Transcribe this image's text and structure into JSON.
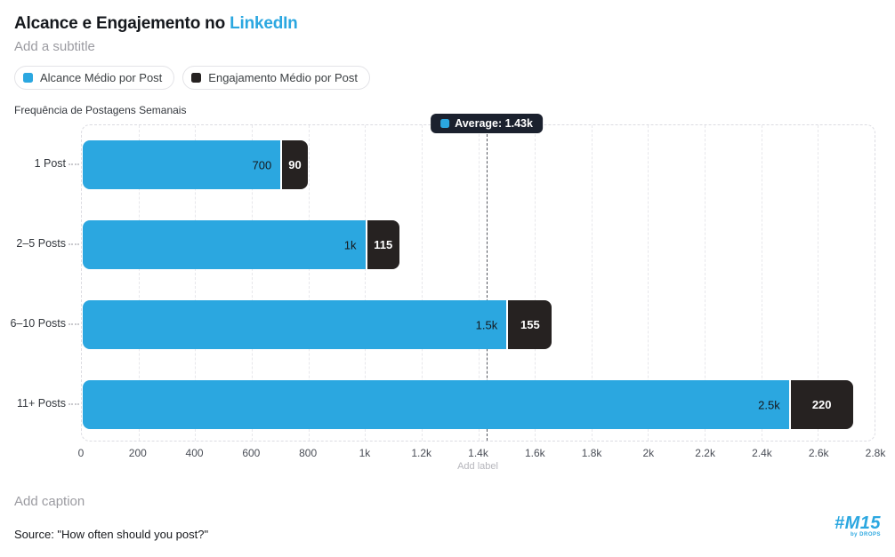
{
  "header": {
    "title_prefix": "Alcance e Engajemento no ",
    "title_highlight": "LinkedIn",
    "subtitle_placeholder": "Add a subtitle"
  },
  "legend": {
    "items": [
      {
        "label": "Alcance Médio por Post",
        "color": "#2BA7E0"
      },
      {
        "label": "Engajamento Médio por Post",
        "color": "#262221"
      }
    ]
  },
  "chart_data": {
    "type": "bar",
    "orientation": "horizontal",
    "stacked": true,
    "y_axis_title": "Frequência de Postagens Semanais",
    "categories": [
      "1 Post",
      "2–5 Posts",
      "6–10 Posts",
      "11+ Posts"
    ],
    "series": [
      {
        "name": "Alcance Médio por Post",
        "color": "#2BA7E0",
        "values": [
          700,
          1000,
          1500,
          2500
        ],
        "value_labels": [
          "700",
          "1k",
          "1.5k",
          "2.5k"
        ]
      },
      {
        "name": "Engajamento Médio por Post",
        "color": "#262221",
        "values": [
          90,
          115,
          155,
          220
        ],
        "value_labels": [
          "90",
          "115",
          "155",
          "220"
        ]
      }
    ],
    "x_axis": {
      "min": 0,
      "max": 2800,
      "tick_labels": [
        "0",
        "200",
        "400",
        "600",
        "800",
        "1k",
        "1.2k",
        "1.4k",
        "1.6k",
        "1.8k",
        "2k",
        "2.2k",
        "2.4k",
        "2.6k",
        "2.8k"
      ],
      "label_placeholder": "Add label"
    },
    "average_line": {
      "value": 1430,
      "label": "Average: 1.43k",
      "marker_color": "#2BA7E0"
    },
    "grid": "vertical-dashed",
    "legend_position": "top"
  },
  "footer": {
    "caption_placeholder": "Add caption",
    "source": "Source: \"How often should you post?\"",
    "logo_text": "#M15",
    "logo_subtext": "by DROPS"
  },
  "colors": {
    "accent_blue": "#2BA7E0",
    "dark": "#262221",
    "average_pill_bg": "#1B212E",
    "grid": "#E7E7EB"
  }
}
